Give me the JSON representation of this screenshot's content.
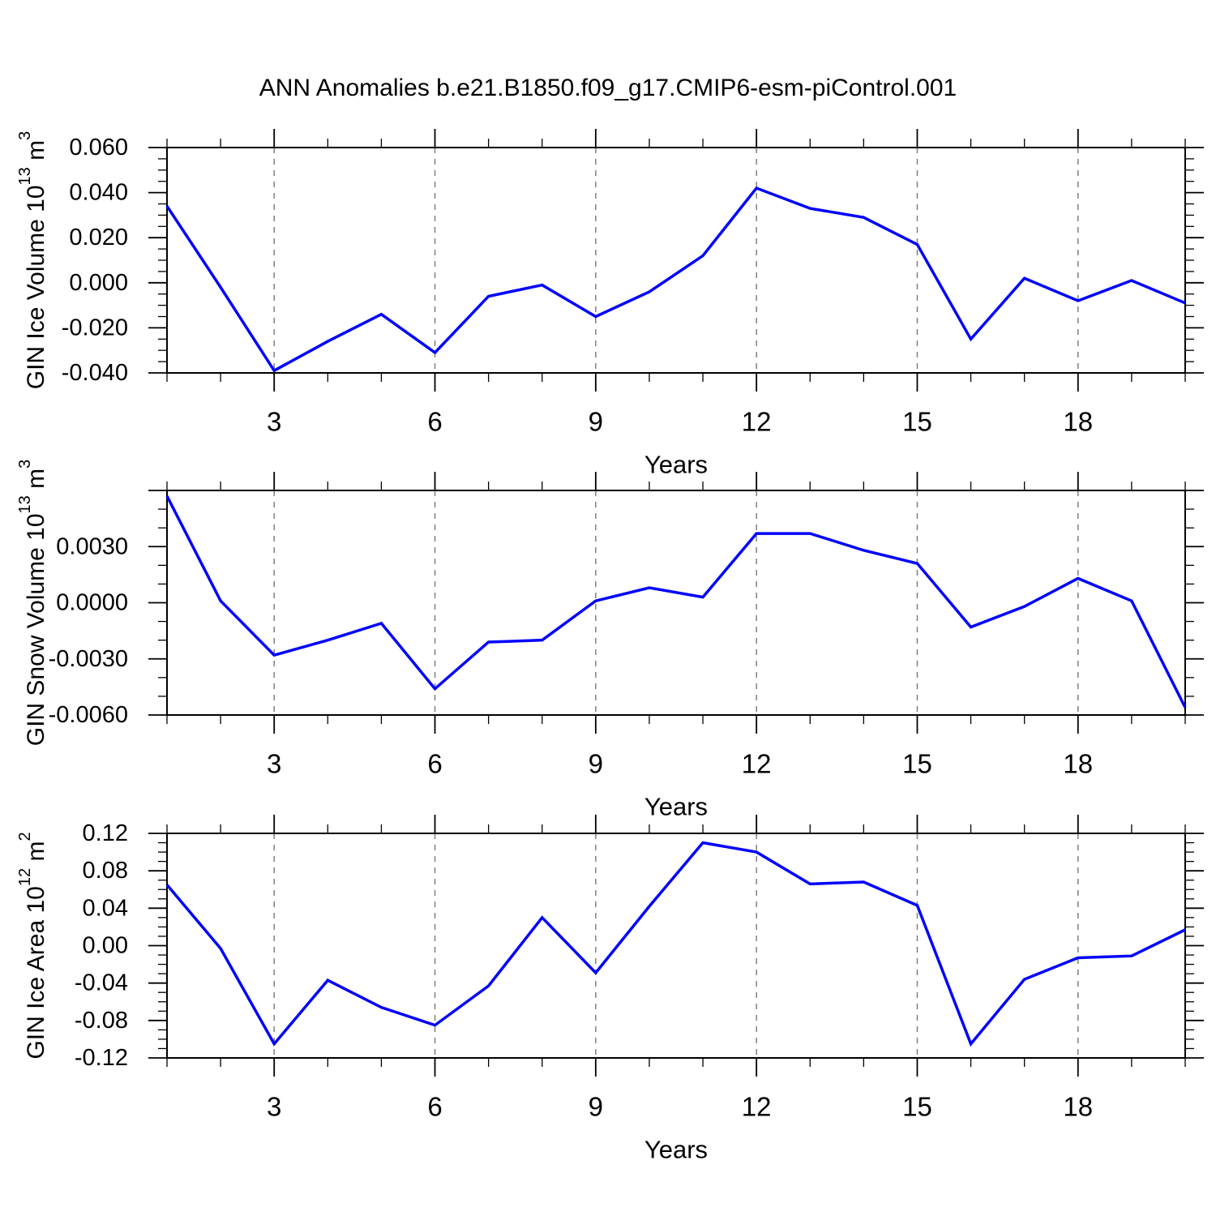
{
  "title": "ANN Anomalies b.e21.B1850.f09_g17.CMIP6-esm-piControl.001",
  "xlabel": "Years",
  "colors": {
    "line": "#0000ff",
    "frame": "#000000",
    "grid": "#808080",
    "background": "#ffffff",
    "text": "#000000"
  },
  "x_years": [
    1,
    2,
    3,
    4,
    5,
    6,
    7,
    8,
    9,
    10,
    11,
    12,
    13,
    14,
    15,
    16,
    17,
    18,
    19,
    20
  ],
  "x_major_ticks": [
    3,
    6,
    9,
    12,
    15,
    18
  ],
  "x_tick_labels": [
    "3",
    "6",
    "9",
    "12",
    "15",
    "18"
  ],
  "chart_data": [
    {
      "type": "line",
      "name": "gin-ice-volume",
      "ylabel_text": "GIN Ice Volume 10¹³ m³",
      "ylabel_parts": [
        "GIN Ice Volume 10",
        {
          "sup": "13"
        },
        " m",
        {
          "sup": "3"
        }
      ],
      "ylim": [
        -0.04,
        0.06
      ],
      "ymajor_step": 0.02,
      "yminor_step": 0.005,
      "yticks_labeled": [
        {
          "value": 0.06,
          "label": "0.060"
        },
        {
          "value": 0.04,
          "label": "0.040"
        },
        {
          "value": 0.02,
          "label": "0.020"
        },
        {
          "value": 0.0,
          "label": "0.000"
        },
        {
          "value": -0.02,
          "label": "-0.020"
        },
        {
          "value": -0.04,
          "label": "-0.040"
        }
      ],
      "x": [
        1,
        2,
        3,
        4,
        5,
        6,
        7,
        8,
        9,
        10,
        11,
        12,
        13,
        14,
        15,
        16,
        17,
        18,
        19,
        20
      ],
      "values": [
        0.034,
        -0.002,
        -0.039,
        -0.026,
        -0.014,
        -0.031,
        -0.006,
        -0.001,
        -0.015,
        -0.004,
        0.012,
        0.042,
        0.033,
        0.029,
        0.017,
        -0.025,
        0.002,
        -0.008,
        0.001,
        -0.009
      ]
    },
    {
      "type": "line",
      "name": "gin-snow-volume",
      "ylabel_text": "GIN Snow Volume 10¹³ m³",
      "ylabel_parts": [
        "GIN Snow Volume 10",
        {
          "sup": "13"
        },
        " m",
        {
          "sup": "3"
        }
      ],
      "ylim": [
        -0.006,
        0.006
      ],
      "ymajor_step": 0.003,
      "yminor_step": 0.001,
      "yticks_labeled": [
        {
          "value": 0.003,
          "label": "0.0030"
        },
        {
          "value": 0.0,
          "label": "0.0000"
        },
        {
          "value": -0.003,
          "label": "-0.0030"
        },
        {
          "value": -0.006,
          "label": "-0.0060"
        }
      ],
      "x": [
        1,
        2,
        3,
        4,
        5,
        6,
        7,
        8,
        9,
        10,
        11,
        12,
        13,
        14,
        15,
        16,
        17,
        18,
        19,
        20
      ],
      "values": [
        0.0057,
        0.0001,
        -0.0028,
        -0.002,
        -0.0011,
        -0.0046,
        -0.0021,
        -0.002,
        0.0001,
        0.0008,
        0.0003,
        0.0037,
        0.0037,
        0.0028,
        0.0021,
        -0.0013,
        -0.0002,
        0.0013,
        0.0001,
        -0.0056
      ]
    },
    {
      "type": "line",
      "name": "gin-ice-area",
      "ylabel_text": "GIN Ice Area 10¹² m²",
      "ylabel_parts": [
        "GIN Ice Area 10",
        {
          "sup": "12"
        },
        " m",
        {
          "sup": "2"
        }
      ],
      "ylim": [
        -0.12,
        0.12
      ],
      "ymajor_step": 0.04,
      "yminor_step": 0.01,
      "yticks_labeled": [
        {
          "value": 0.12,
          "label": "0.12"
        },
        {
          "value": 0.08,
          "label": "0.08"
        },
        {
          "value": 0.04,
          "label": "0.04"
        },
        {
          "value": 0.0,
          "label": "0.00"
        },
        {
          "value": -0.04,
          "label": "-0.04"
        },
        {
          "value": -0.08,
          "label": "-0.08"
        },
        {
          "value": -0.12,
          "label": "-0.12"
        }
      ],
      "x": [
        1,
        2,
        3,
        4,
        5,
        6,
        7,
        8,
        9,
        10,
        11,
        12,
        13,
        14,
        15,
        16,
        17,
        18,
        19,
        20
      ],
      "values": [
        0.065,
        -0.003,
        -0.105,
        -0.037,
        -0.066,
        -0.085,
        -0.043,
        0.03,
        -0.029,
        0.042,
        0.11,
        0.1,
        0.066,
        0.068,
        0.043,
        -0.105,
        -0.036,
        -0.013,
        -0.011,
        0.017
      ]
    }
  ]
}
